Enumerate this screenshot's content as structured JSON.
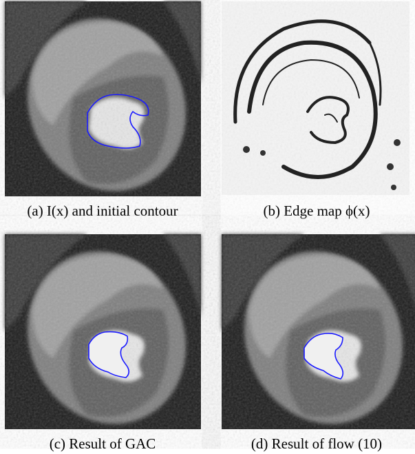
{
  "figure": {
    "panels": [
      {
        "caption": "(a) I(x) and initial contour"
      },
      {
        "caption": "(b) Edge map ϕ(x)"
      },
      {
        "caption": "(c) Result of GAC"
      },
      {
        "caption": "(d) Result of flow (10)"
      }
    ]
  }
}
